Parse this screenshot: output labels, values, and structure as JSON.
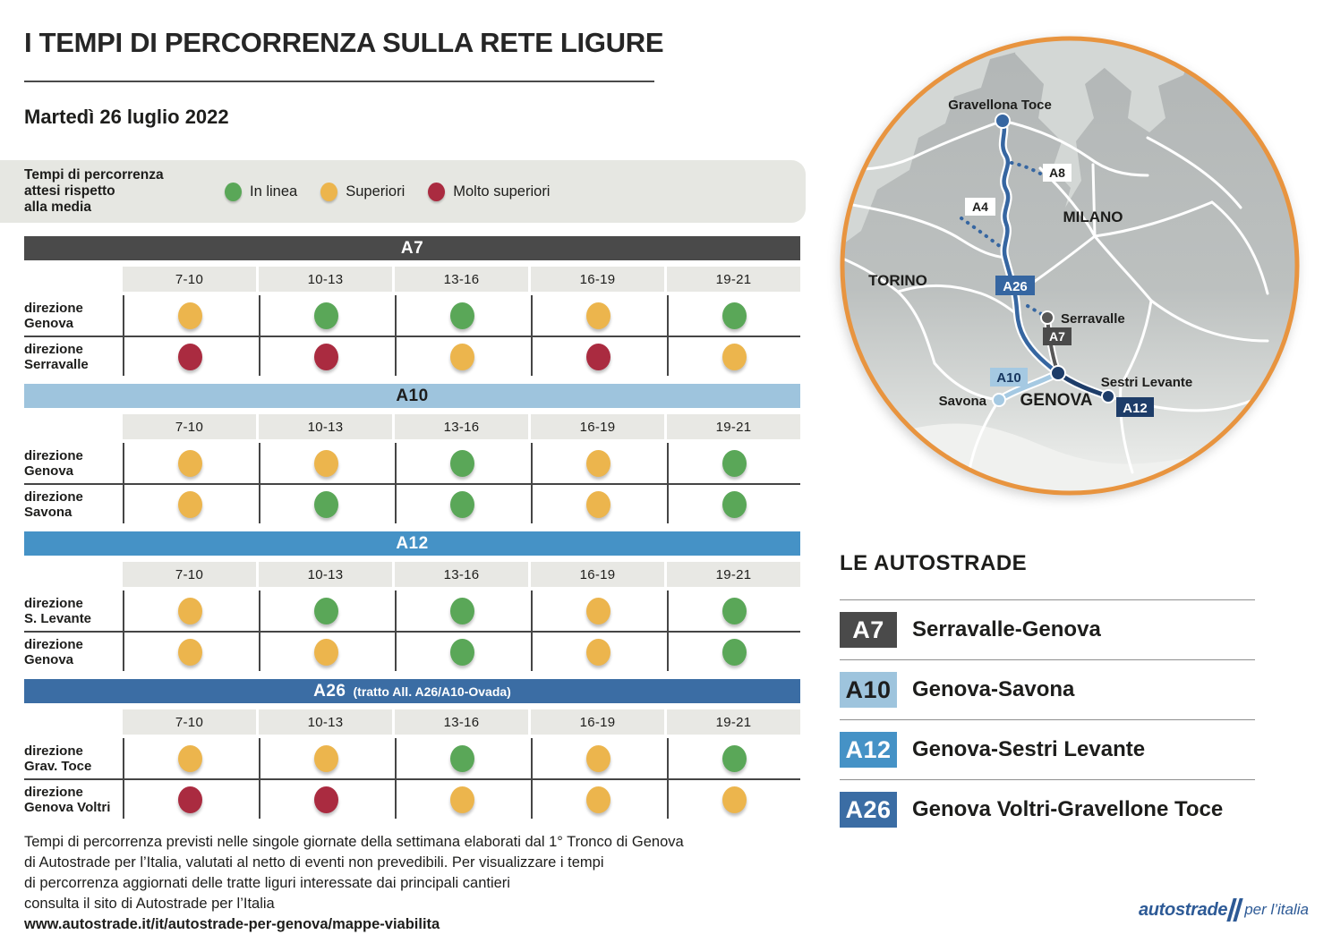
{
  "chart_data": {
    "type": "table",
    "title": "I TEMPI DI PERCORRENZA SULLA RETE LIGURE",
    "date": "Martedì 26 luglio 2022",
    "time_slots": [
      "7-10",
      "10-13",
      "13-16",
      "16-19",
      "19-21"
    ],
    "status_legend": [
      {
        "status": "green",
        "label": "In linea"
      },
      {
        "status": "yellow",
        "label": "Superiori"
      },
      {
        "status": "red",
        "label": "Molto superiori"
      }
    ],
    "highways": [
      {
        "code": "A7",
        "subtitle": "",
        "directions": [
          {
            "prefix": "direzione",
            "name": "Genova",
            "statuses": [
              "yellow",
              "green",
              "green",
              "yellow",
              "green"
            ]
          },
          {
            "prefix": "direzione",
            "name": "Serravalle",
            "statuses": [
              "red",
              "red",
              "yellow",
              "red",
              "yellow"
            ]
          }
        ]
      },
      {
        "code": "A10",
        "subtitle": "",
        "directions": [
          {
            "prefix": "direzione",
            "name": "Genova",
            "statuses": [
              "yellow",
              "yellow",
              "green",
              "yellow",
              "green"
            ]
          },
          {
            "prefix": "direzione",
            "name": "Savona",
            "statuses": [
              "yellow",
              "green",
              "green",
              "yellow",
              "green"
            ]
          }
        ]
      },
      {
        "code": "A12",
        "subtitle": "",
        "directions": [
          {
            "prefix": "direzione",
            "name": "S. Levante",
            "statuses": [
              "yellow",
              "green",
              "green",
              "yellow",
              "green"
            ]
          },
          {
            "prefix": "direzione",
            "name": "Genova",
            "statuses": [
              "yellow",
              "yellow",
              "green",
              "yellow",
              "green"
            ]
          }
        ]
      },
      {
        "code": "A26",
        "subtitle": "(tratto All. A26/A10-Ovada)",
        "directions": [
          {
            "prefix": "direzione",
            "name": "Grav. Toce",
            "statuses": [
              "yellow",
              "yellow",
              "green",
              "yellow",
              "green"
            ]
          },
          {
            "prefix": "direzione",
            "name": "Genova Voltri",
            "statuses": [
              "red",
              "red",
              "yellow",
              "yellow",
              "yellow"
            ]
          }
        ]
      }
    ]
  },
  "legend": {
    "caption_lines": [
      "Tempi di percorrenza",
      "attesi rispetto",
      "alla media"
    ]
  },
  "styles": {
    "status_colors": {
      "green": "#5aa758",
      "yellow": "#ecb54d",
      "red": "#aa2b40"
    },
    "header_styles": {
      "A7": {
        "bg": "#4a4a4a",
        "fg": "#ffffff"
      },
      "A10": {
        "bg": "#9ec4dd",
        "fg": "#1d1d1d"
      },
      "A12": {
        "bg": "#4592c6",
        "fg": "#ffffff"
      },
      "A26": {
        "bg": "#3b6da4",
        "fg": "#ffffff"
      }
    },
    "map_border": "#e8943f"
  },
  "map": {
    "labels": {
      "gravellona": "Gravellona Toce",
      "a8": "A8",
      "a4": "A4",
      "milano": "MILANO",
      "torino": "TORINO",
      "a26": "A26",
      "serravalle": "Serravalle",
      "a7": "A7",
      "a10": "A10",
      "genova": "GENOVA",
      "savona": "Savona",
      "sestri": "Sestri Levante",
      "a12": "A12"
    }
  },
  "autostrade_legend": {
    "title": "LE AUTOSTRADE",
    "items": [
      {
        "badge": "A7",
        "badge_bg": "#4a4a4a",
        "badge_fg": "#ffffff",
        "name": "Serravalle-Genova"
      },
      {
        "badge": "A10",
        "badge_bg": "#9ec4dd",
        "badge_fg": "#1d1d1d",
        "name": "Genova-Savona"
      },
      {
        "badge": "A12",
        "badge_bg": "#4592c6",
        "badge_fg": "#ffffff",
        "name": "Genova-Sestri Levante"
      },
      {
        "badge": "A26",
        "badge_bg": "#3b6da4",
        "badge_fg": "#ffffff",
        "name": "Genova Voltri-Gravellone Toce"
      }
    ]
  },
  "footer": {
    "lines": [
      "Tempi di percorrenza previsti nelle singole giornate della settimana elaborati dal 1° Tronco di Genova",
      "di Autostrade per l’Italia, valutati al netto di eventi non prevedibili. Per visualizzare i tempi",
      "di percorrenza aggiornati delle tratte liguri interessate dai principali cantieri",
      "consulta il sito di Autostrade per l’Italia"
    ],
    "url": "www.autostrade.it/it/autostrade-per-genova/mappe-viabilita"
  },
  "logo": {
    "brand": "autostrade",
    "tagline": "per l’italia",
    "color": "#2d5a96"
  }
}
